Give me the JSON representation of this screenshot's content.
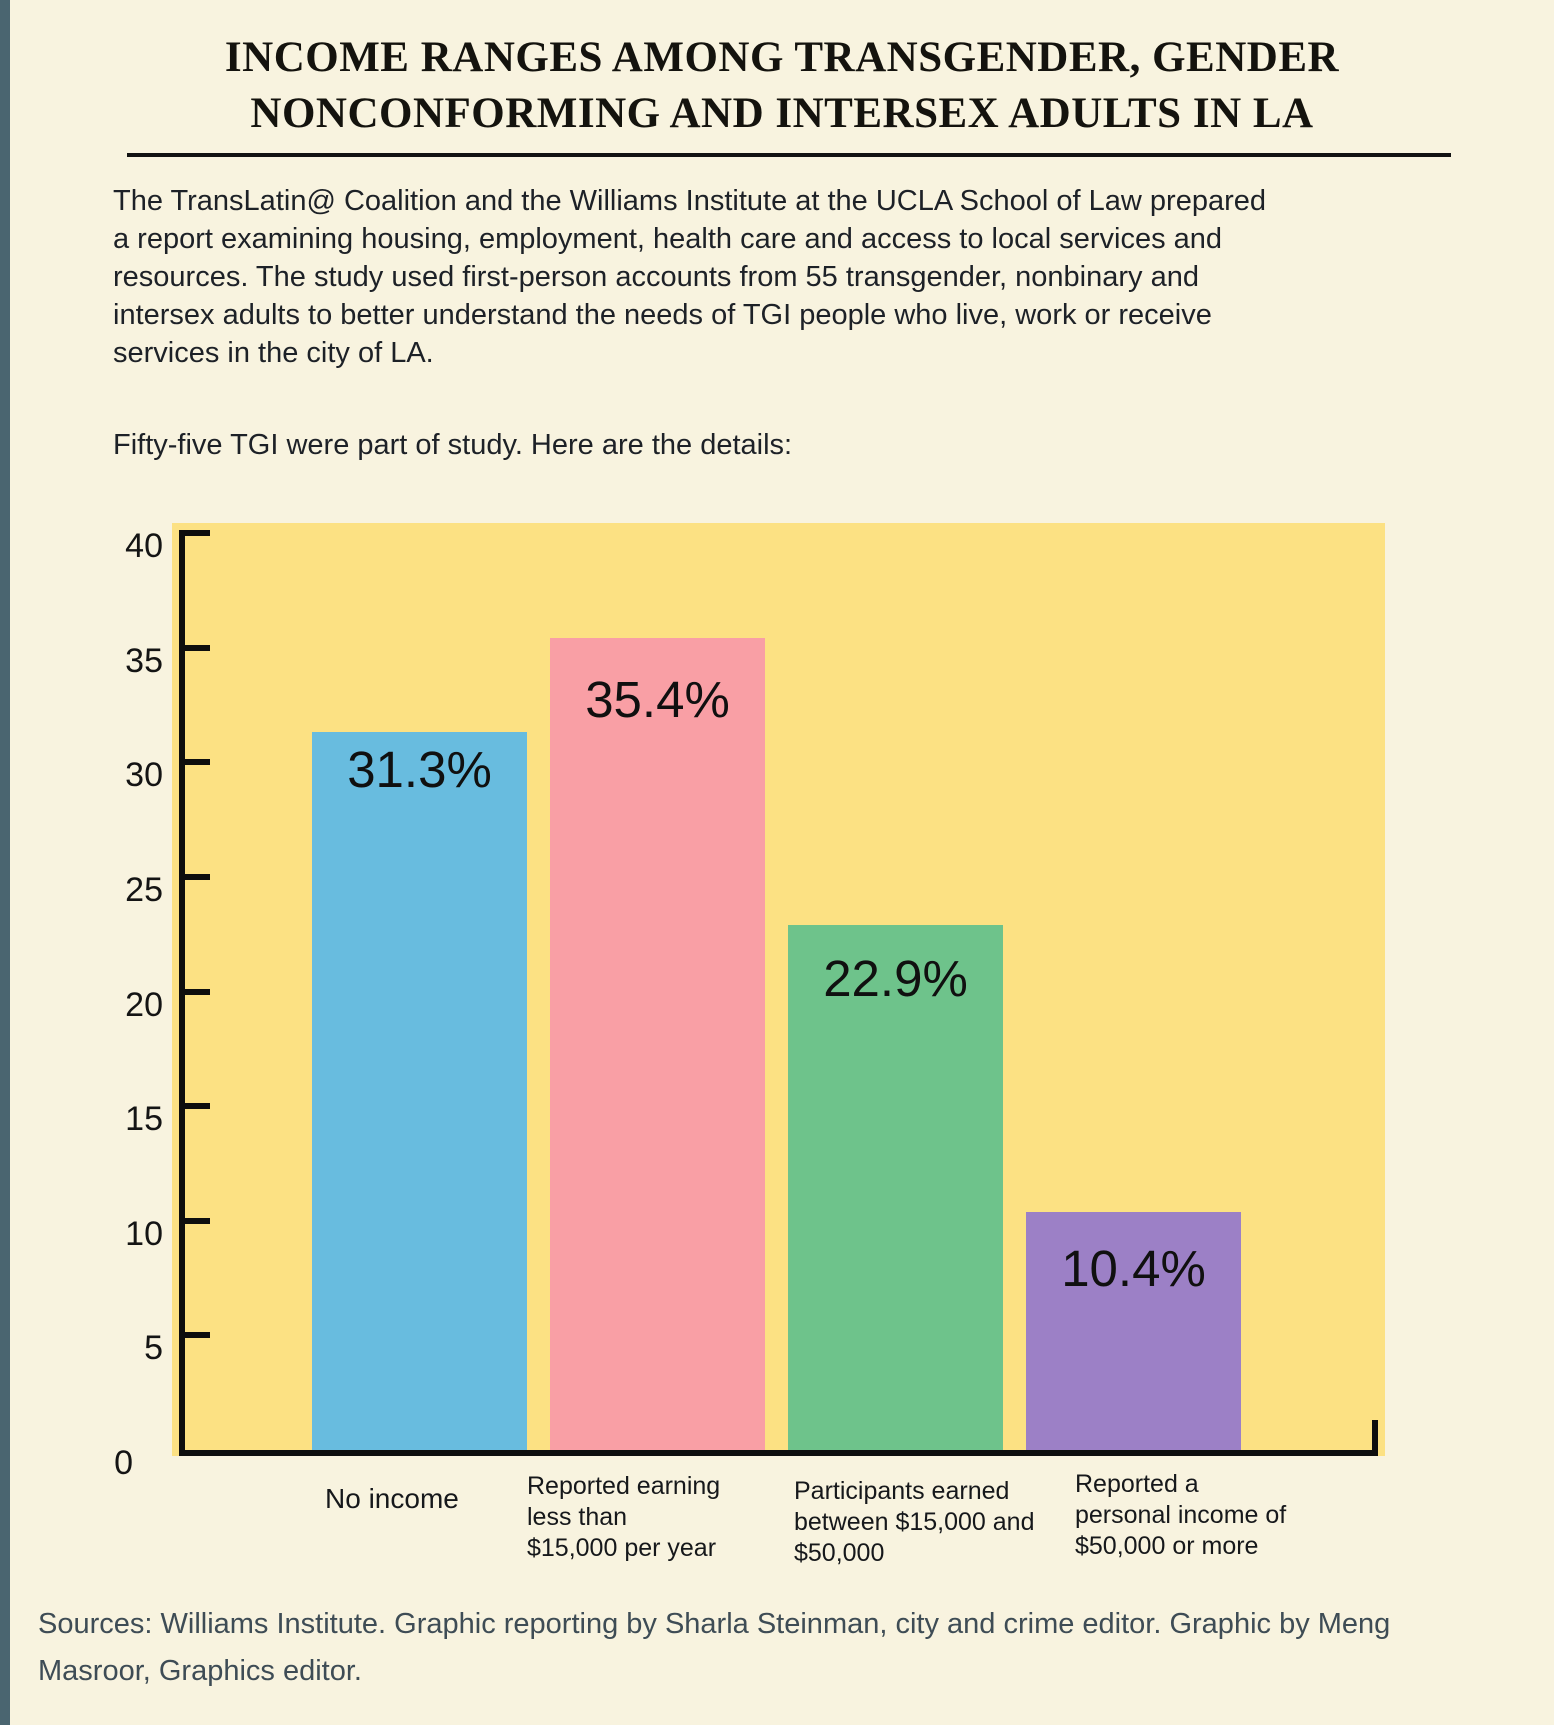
{
  "page": {
    "title": "INCOME RANGES AMONG TRANSGENDER, GENDER\nNONCONFORMING AND INTERSEX ADULTS IN LA",
    "intro": "The TransLatin@ Coalition and the Williams Institute at the UCLA School of Law prepared\na report examining housing, employment, health care and access to local services and\nresources. The study used first-person accounts from 55 transgender, nonbinary and\nintersex adults to better understand the needs of TGI people who live, work or receive\nservices in the city of LA.",
    "subtitle": "Fifty-five TGI were part of study. Here are the details:",
    "source": "Sources: Williams Institute. Graphic reporting by Sharla Steinman, city and crime editor. Graphic by Meng\nMasroor, Graphics editor."
  },
  "chart_data": {
    "type": "bar",
    "title": "",
    "xlabel": "",
    "ylabel": "",
    "categories": [
      "No income",
      "Reported earning less than $15,000 per year",
      "Participants earned between $15,000 and $50,000",
      "Reported a personal income of $50,000 or more"
    ],
    "category_lines": [
      [
        "No income"
      ],
      [
        "Reported earning",
        "less than",
        "$15,000 per year"
      ],
      [
        "Participants earned",
        "between $15,000 and",
        "$50,000"
      ],
      [
        "Reported a",
        "personal income of",
        "$50,000 or more"
      ]
    ],
    "values": [
      31.3,
      35.4,
      22.9,
      10.4
    ],
    "value_labels": [
      "31.3%",
      "35.4%",
      "22.9%",
      "10.4%"
    ],
    "bar_colors": [
      "#68BCDF",
      "#F99FA5",
      "#6EC38B",
      "#9C80C6"
    ],
    "plot_background": "#FCE183",
    "axis_color": "#0E0E0E",
    "ylim": [
      0,
      40
    ],
    "yticks": [
      0,
      5,
      10,
      15,
      20,
      25,
      30,
      35,
      40
    ],
    "grid": false,
    "legend": "none"
  },
  "colors": {
    "page_background": "#F8F3DF",
    "edge_strip": "#4A6570",
    "body_text": "#1D2127",
    "source_text": "#3E4C55"
  }
}
